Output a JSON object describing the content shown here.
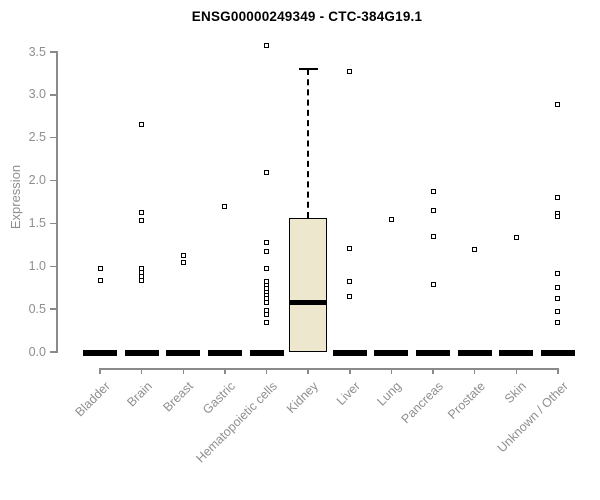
{
  "chart_data": {
    "type": "boxplot",
    "title": "ENSG00000249349 - CTC-384G19.1",
    "ylabel": "Expression",
    "xlabel": "",
    "ylim": [
      0,
      3.65
    ],
    "ytick_labels": [
      "0.0",
      "0.5",
      "1.0",
      "1.5",
      "2.0",
      "2.5",
      "3.0",
      "3.5"
    ],
    "grid": false,
    "legend": "none",
    "box_fill_color": "#EDE7CD",
    "axis_color": "#8a8a8a",
    "label_color": "#8f8f8f",
    "marker": "open-square",
    "categories": [
      "Bladder",
      "Brain",
      "Breast",
      "Gastric",
      "Hematopoietic cells",
      "Kidney",
      "Liver",
      "Lung",
      "Pancreas",
      "Prostate",
      "Skin",
      "Unknown / Other"
    ],
    "series": [
      {
        "name": "Bladder",
        "q1": 0,
        "median": 0,
        "q3": 0,
        "whisker_low": 0,
        "whisker_high": 0,
        "outliers": [
          0.98,
          0.84
        ]
      },
      {
        "name": "Brain",
        "q1": 0,
        "median": 0,
        "q3": 0,
        "whisker_low": 0,
        "whisker_high": 0,
        "outliers": [
          2.65,
          1.63,
          1.54,
          0.98,
          0.93,
          0.88,
          0.83
        ]
      },
      {
        "name": "Breast",
        "q1": 0,
        "median": 0,
        "q3": 0,
        "whisker_low": 0,
        "whisker_high": 0,
        "outliers": [
          1.13,
          1.05
        ]
      },
      {
        "name": "Gastric",
        "q1": 0,
        "median": 0,
        "q3": 0,
        "whisker_low": 0,
        "whisker_high": 0,
        "outliers": [
          1.7
        ]
      },
      {
        "name": "Hematopoietic cells",
        "q1": 0,
        "median": 0,
        "q3": 0,
        "whisker_low": 0,
        "whisker_high": 0,
        "outliers": [
          3.58,
          2.1,
          1.28,
          1.17,
          0.98,
          0.82,
          0.78,
          0.74,
          0.7,
          0.66,
          0.62,
          0.58,
          0.49,
          0.44,
          0.34
        ]
      },
      {
        "name": "Kidney",
        "q1": 0,
        "median": 0.58,
        "q3": 1.56,
        "whisker_low": 0,
        "whisker_high": 3.3,
        "outliers": []
      },
      {
        "name": "Liver",
        "q1": 0,
        "median": 0,
        "q3": 0,
        "whisker_low": 0,
        "whisker_high": 0,
        "outliers": [
          3.27,
          1.21,
          0.82,
          0.65
        ]
      },
      {
        "name": "Lung",
        "q1": 0,
        "median": 0,
        "q3": 0,
        "whisker_low": 0,
        "whisker_high": 0,
        "outliers": [
          1.55
        ]
      },
      {
        "name": "Pancreas",
        "q1": 0,
        "median": 0,
        "q3": 0,
        "whisker_low": 0,
        "whisker_high": 0,
        "outliers": [
          1.87,
          1.65,
          1.35,
          0.79
        ]
      },
      {
        "name": "Prostate",
        "q1": 0,
        "median": 0,
        "q3": 0,
        "whisker_low": 0,
        "whisker_high": 0,
        "outliers": [
          1.2
        ]
      },
      {
        "name": "Skin",
        "q1": 0,
        "median": 0,
        "q3": 0,
        "whisker_low": 0,
        "whisker_high": 0,
        "outliers": [
          1.34
        ]
      },
      {
        "name": "Unknown / Other",
        "q1": 0,
        "median": 0,
        "q3": 0,
        "whisker_low": 0,
        "whisker_high": 0,
        "outliers": [
          2.89,
          1.8,
          1.62,
          1.58,
          0.92,
          0.75,
          0.63,
          0.47,
          0.34
        ]
      }
    ]
  }
}
